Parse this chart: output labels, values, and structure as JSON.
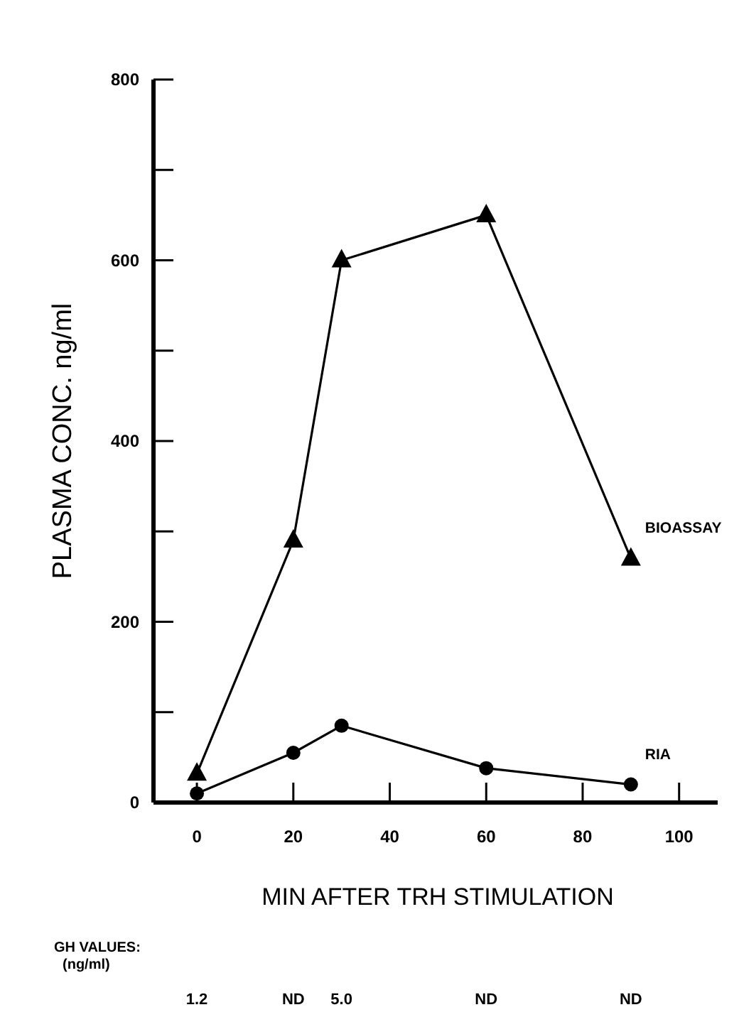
{
  "chart_data": {
    "type": "line",
    "xlabel": "MIN AFTER TRH STIMULATION",
    "ylabel": "PLASMA CONC. ng/ml",
    "x": [
      0,
      20,
      30,
      60,
      90
    ],
    "series": [
      {
        "name": "BIOASSAY",
        "color": "#000000",
        "marker": "triangle",
        "values": [
          32,
          290,
          600,
          650,
          270
        ]
      },
      {
        "name": "RIA",
        "color": "#000000",
        "marker": "circle",
        "values": [
          10,
          55,
          85,
          38,
          20
        ]
      }
    ],
    "xlim": [
      -9,
      108
    ],
    "xticks": [
      0,
      20,
      40,
      60,
      80,
      100
    ],
    "ylim": [
      0,
      800
    ],
    "yticks": [
      0,
      {
        "value": 100,
        "label": null
      },
      200,
      {
        "value": 300,
        "label": null
      },
      400,
      {
        "value": 500,
        "label": null
      },
      600,
      {
        "value": 700,
        "label": null
      },
      800
    ],
    "grid": false,
    "legend": false,
    "line_style": "solid",
    "annotations": [
      "GH VALUES:",
      "(ng/ml)",
      "1.2",
      "ND",
      "5.0",
      "ND",
      "ND"
    ]
  }
}
